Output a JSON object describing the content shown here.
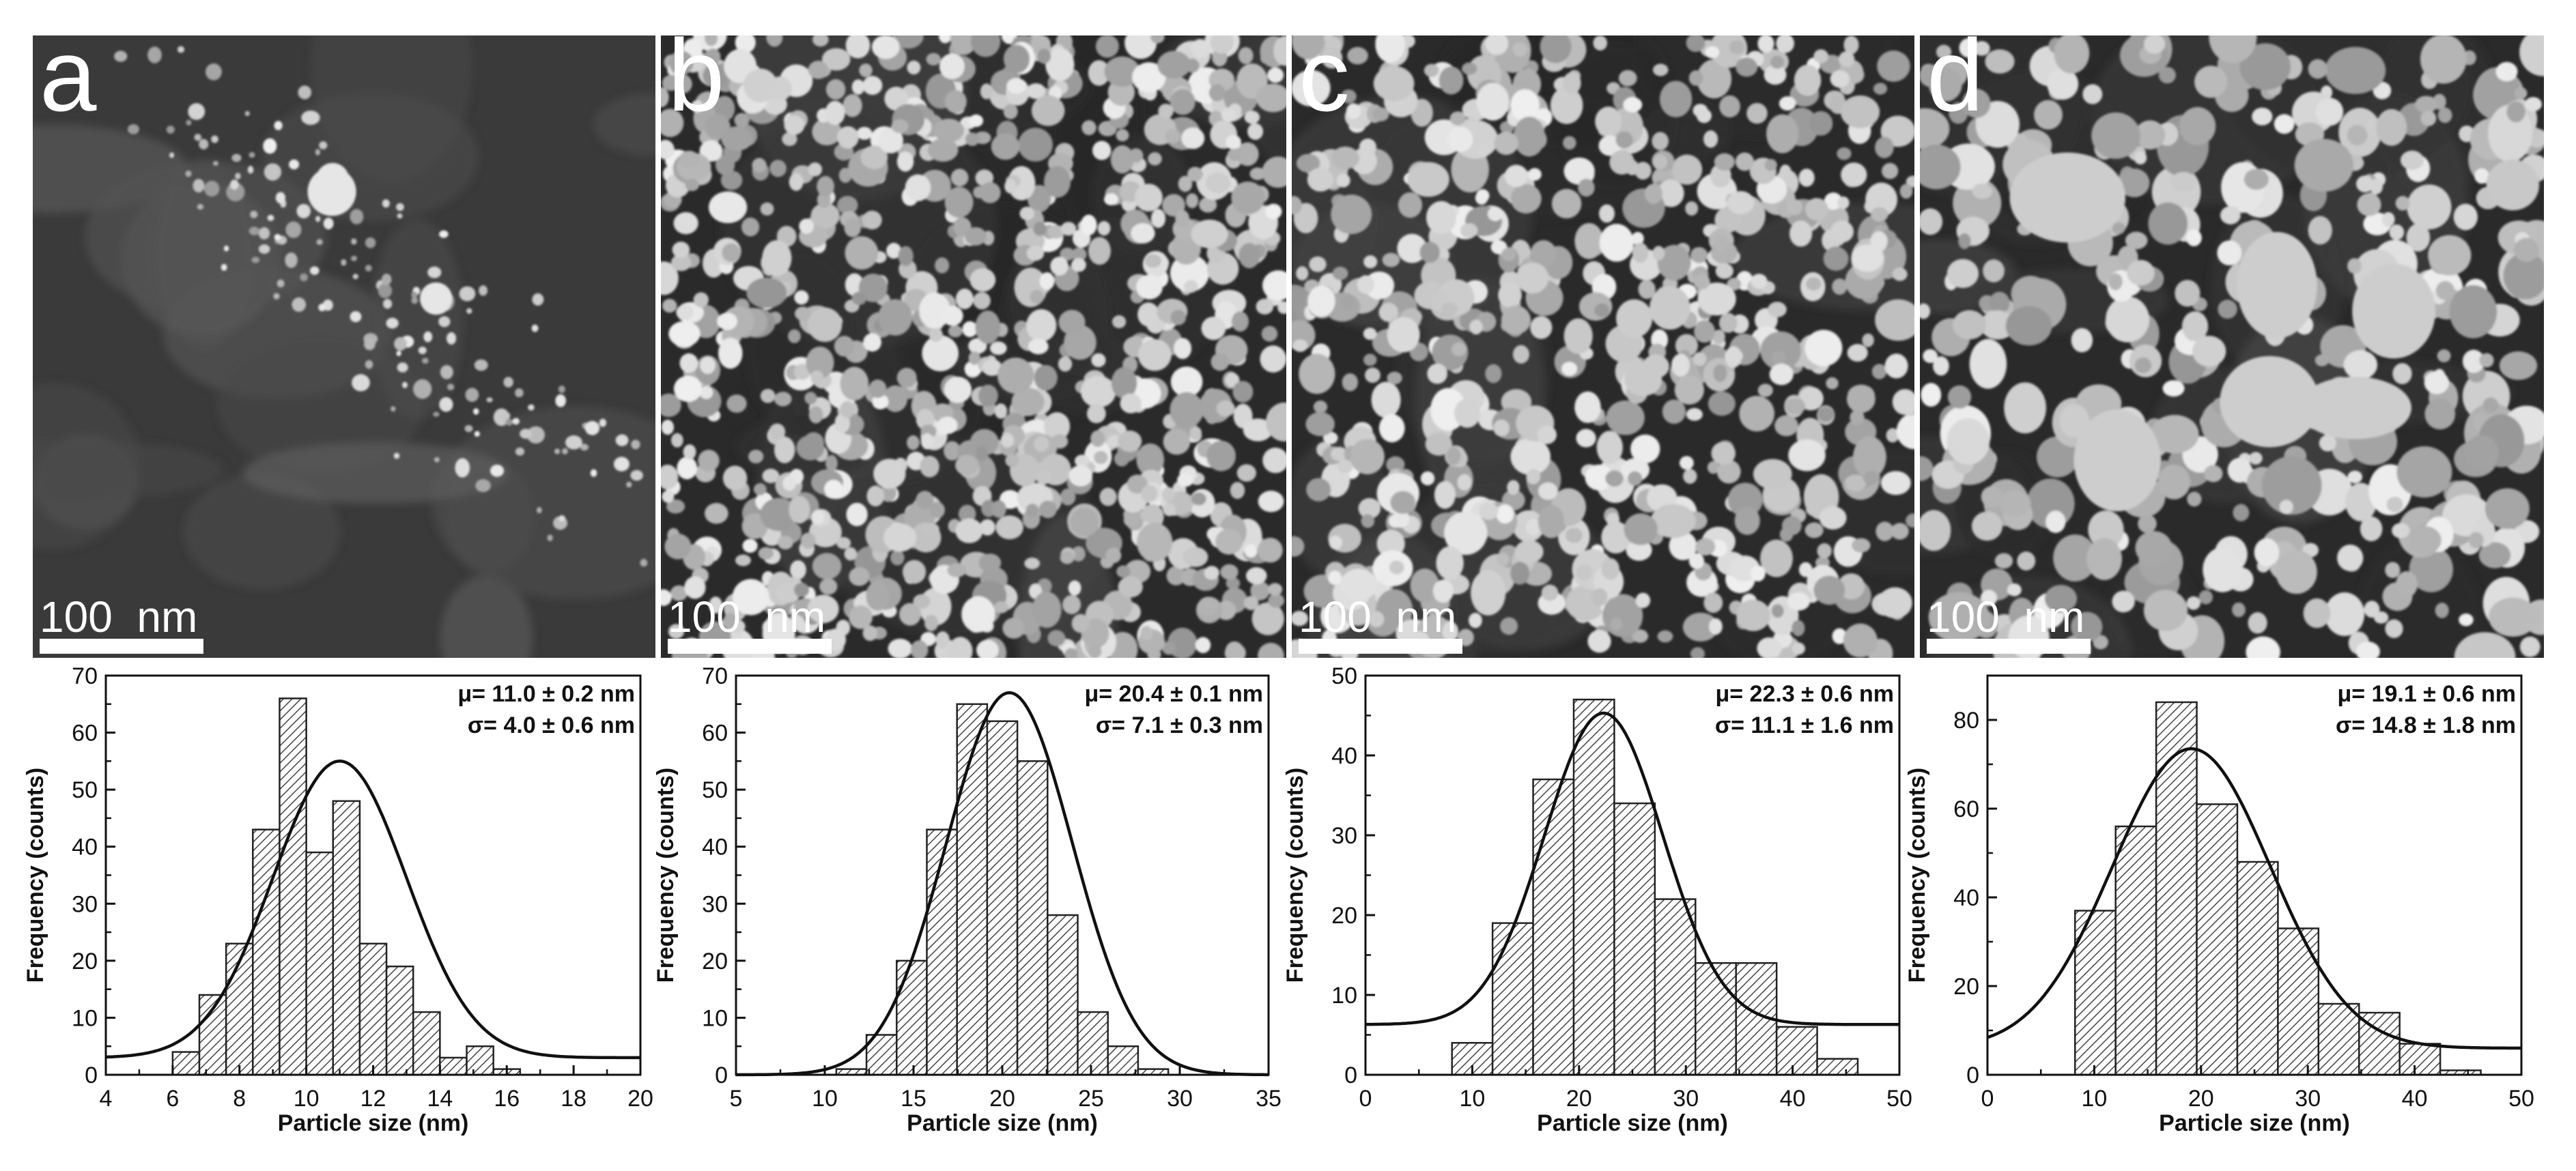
{
  "panels": [
    {
      "letter": "a",
      "scale_bar": "100  nm"
    },
    {
      "letter": "b",
      "scale_bar": "100  nm"
    },
    {
      "letter": "c",
      "scale_bar": "100  nm"
    },
    {
      "letter": "d",
      "scale_bar": "100  nm"
    }
  ],
  "chart_data": [
    {
      "type": "bar",
      "xlabel": "Particle size (nm)",
      "ylabel": "Frequency (counts)",
      "xlim": [
        4,
        20
      ],
      "ylim": [
        0,
        70
      ],
      "xticks": [
        4,
        6,
        8,
        10,
        12,
        14,
        16,
        18,
        20
      ],
      "yticks": [
        0,
        10,
        20,
        30,
        40,
        50,
        60,
        70
      ],
      "bin_width": 0.8,
      "bin_centers": [
        6.4,
        7.2,
        8.0,
        8.8,
        9.6,
        10.4,
        11.2,
        12.0,
        12.8,
        13.6,
        14.4,
        15.2,
        16.0,
        16.8,
        17.6,
        18.4
      ],
      "values": [
        4,
        14,
        23,
        43,
        66,
        39,
        48,
        23,
        19,
        11,
        3,
        5,
        1,
        0,
        0,
        0
      ],
      "fit": {
        "mean": 11.0,
        "sd": 2.0,
        "amplitude": 52,
        "baseline": 3
      },
      "annotations": [
        "μ= 11.0 ± 0.2 nm",
        "σ= 4.0 ± 0.6 nm"
      ]
    },
    {
      "type": "bar",
      "xlabel": "Particle size (nm)",
      "ylabel": "Frequency (counts)",
      "xlim": [
        5,
        35
      ],
      "ylim": [
        0,
        70
      ],
      "xticks": [
        5,
        10,
        15,
        20,
        25,
        30,
        35
      ],
      "yticks": [
        0,
        10,
        20,
        30,
        40,
        50,
        60,
        70
      ],
      "bin_width": 1.7,
      "bin_centers": [
        11.5,
        13.2,
        14.9,
        16.6,
        18.3,
        20.0,
        21.7,
        23.4,
        25.1,
        26.8,
        28.5,
        30.2
      ],
      "values": [
        1,
        7,
        20,
        43,
        65,
        62,
        55,
        28,
        11,
        5,
        1,
        0
      ],
      "fit": {
        "mean": 20.4,
        "sd": 3.55,
        "amplitude": 67,
        "baseline": 0
      },
      "annotations": [
        "μ= 20.4 ± 0.1 nm",
        "σ= 7.1 ± 0.3 nm"
      ]
    },
    {
      "type": "bar",
      "xlabel": "Particle size (nm)",
      "ylabel": "Frequency (counts)",
      "xlim": [
        0,
        50
      ],
      "ylim": [
        0,
        50
      ],
      "xticks": [
        0,
        10,
        20,
        30,
        40,
        50
      ],
      "yticks": [
        0,
        10,
        20,
        30,
        40,
        50
      ],
      "bin_width": 3.8,
      "bin_centers": [
        10.0,
        13.8,
        17.6,
        21.4,
        25.2,
        29.0,
        32.8,
        36.6,
        40.4,
        44.2
      ],
      "values": [
        4,
        19,
        37,
        47,
        34,
        22,
        14,
        14,
        6,
        2
      ],
      "fit": {
        "mean": 22.3,
        "sd": 5.55,
        "amplitude": 39,
        "baseline": 6.3
      },
      "annotations": [
        "μ= 22.3 ± 0.6 nm",
        "σ= 11.1 ± 1.6 nm"
      ]
    },
    {
      "type": "bar",
      "xlabel": "Particle size (nm)",
      "ylabel": "Frequency (counts)",
      "xlim": [
        0,
        50
      ],
      "ylim": [
        0,
        90
      ],
      "xticks": [
        0,
        10,
        20,
        30,
        40,
        50
      ],
      "yticks": [
        0,
        20,
        40,
        60,
        80
      ],
      "bin_width": 3.8,
      "bin_centers": [
        10.1,
        13.9,
        17.7,
        21.5,
        25.3,
        29.1,
        32.9,
        36.7,
        40.5,
        44.3
      ],
      "values": [
        37,
        56,
        84,
        61,
        48,
        33,
        16,
        14,
        7,
        1
      ],
      "fit": {
        "mean": 19.1,
        "sd": 7.4,
        "amplitude": 67.5,
        "baseline": 6
      },
      "annotations": [
        "μ= 19.1 ± 0.6 nm",
        "σ= 14.8 ± 1.8 nm"
      ]
    }
  ]
}
